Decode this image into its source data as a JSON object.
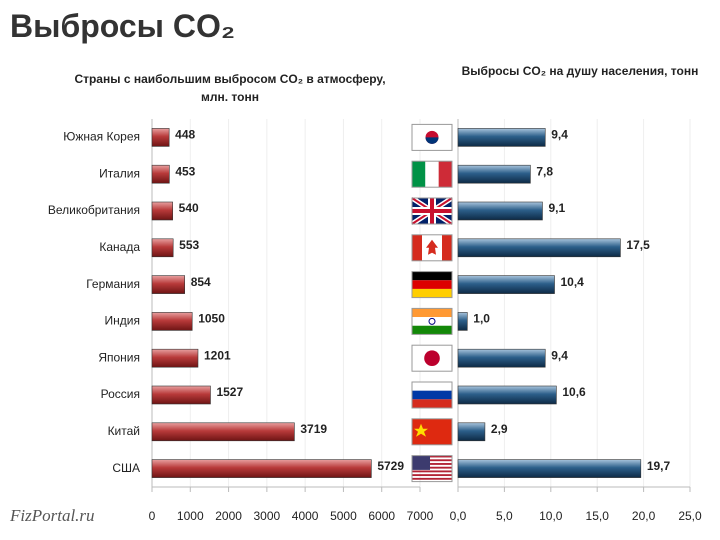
{
  "title": "Выбросы CO₂",
  "watermark": "FizPortal.ru",
  "chart_data": [
    {
      "type": "hbar",
      "title": "Страны с наибольшим выбросом CO₂ в атмосферу, млн. тонн",
      "categories": [
        "Южная Корея",
        "Италия",
        "Великобритания",
        "Канада",
        "Германия",
        "Индия",
        "Япония",
        "Россия",
        "Китай",
        "США"
      ],
      "values": [
        448,
        453,
        540,
        553,
        854,
        1050,
        1201,
        1527,
        3719,
        5729
      ],
      "color": "url(#gred)",
      "xlim": [
        0,
        7000
      ],
      "xticks": [
        0,
        1000,
        2000,
        3000,
        4000,
        5000,
        6000,
        7000
      ],
      "grid": true
    },
    {
      "type": "hbar",
      "title": "Выбросы CO₂ на душу населения, тонн",
      "categories": [
        null,
        null,
        null,
        null,
        null,
        null,
        null,
        null,
        null,
        null
      ],
      "values": [
        9.4,
        7.8,
        9.1,
        17.5,
        10.4,
        1.0,
        9.4,
        10.6,
        2.9,
        19.7
      ],
      "value_labels": [
        "9,4",
        "7,8",
        "9,1",
        "17,5",
        "10,4",
        "1,0",
        "9,4",
        "10,6",
        "2,9",
        "19,7"
      ],
      "color": "url(#gblue)",
      "xlim": [
        0,
        25
      ],
      "xticks": [
        {
          "value": 0,
          "label": "0,0"
        },
        {
          "value": 5,
          "label": "5,0"
        },
        {
          "value": 10,
          "label": "10,0"
        },
        {
          "value": 15,
          "label": "15,0"
        },
        {
          "value": 20,
          "label": "20,0"
        },
        {
          "value": 25,
          "label": "25,0"
        }
      ],
      "grid": true
    }
  ]
}
